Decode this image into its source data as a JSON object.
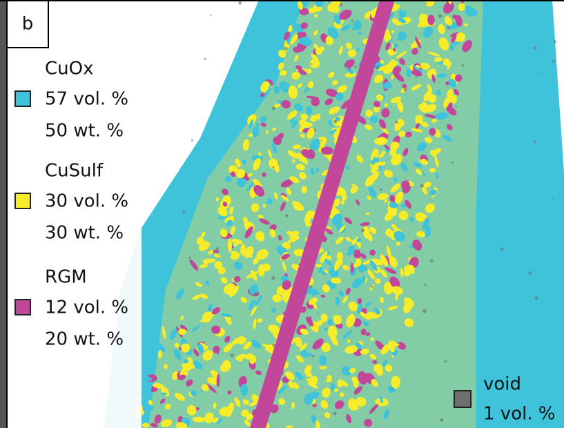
{
  "panel_label": "b",
  "legend": [
    {
      "name": "CuOx",
      "color": "#3ec3da",
      "lines": [
        "57 vol. %",
        "50 wt. %"
      ]
    },
    {
      "name": "CuSulf",
      "color": "#f7ec2a",
      "lines": [
        "30 vol. %",
        "30 wt. %"
      ]
    },
    {
      "name": "RGM",
      "color": "#c2469a",
      "lines": [
        "12 vol. %",
        "20 wt. %"
      ]
    },
    {
      "name": "void",
      "color": "#6e6f71",
      "lines": [
        "1 vol. %"
      ]
    }
  ]
}
